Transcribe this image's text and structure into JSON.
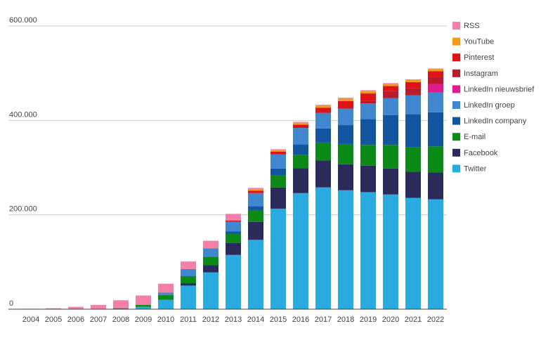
{
  "chart_data": {
    "type": "bar",
    "stacked": true,
    "title": "",
    "xlabel": "",
    "ylabel": "",
    "ylim": [
      0,
      600000
    ],
    "yticks": [
      0,
      200000,
      400000,
      600000
    ],
    "ytick_labels": [
      "0",
      "200.000",
      "400.000",
      "600.000"
    ],
    "grid": true,
    "legend_position": "right",
    "categories": [
      "2004",
      "2005",
      "2006",
      "2007",
      "2008",
      "2009",
      "2010",
      "2011",
      "2012",
      "2013",
      "2014",
      "2015",
      "2016",
      "2017",
      "2018",
      "2019",
      "2020",
      "2021",
      "2022"
    ],
    "series": [
      {
        "name": "Twitter",
        "color": "#29ABE2",
        "values": [
          0,
          0,
          0,
          0,
          0,
          5000,
          20000,
          50000,
          78000,
          115000,
          147000,
          213000,
          246000,
          258000,
          252000,
          248000,
          243000,
          236000,
          233000
        ]
      },
      {
        "name": "Facebook",
        "color": "#2A2A5C",
        "values": [
          0,
          0,
          0,
          0,
          0,
          0,
          0,
          5000,
          15000,
          25000,
          38000,
          45000,
          53000,
          57000,
          55000,
          56000,
          55000,
          55000,
          57000
        ]
      },
      {
        "name": "E-mail",
        "color": "#0B8A17",
        "values": [
          0,
          0,
          0,
          0,
          2000,
          4000,
          10000,
          15000,
          18000,
          20000,
          25000,
          25000,
          28000,
          38000,
          43000,
          44000,
          50000,
          52000,
          55000
        ]
      },
      {
        "name": "LinkedIn company",
        "color": "#1355A0",
        "values": [
          0,
          0,
          0,
          0,
          0,
          0,
          0,
          0,
          0,
          5000,
          8000,
          15000,
          22000,
          30000,
          40000,
          55000,
          63000,
          70000,
          72000
        ]
      },
      {
        "name": "LinkedIn groep",
        "color": "#3F88CF",
        "values": [
          0,
          0,
          0,
          0,
          0,
          0,
          5000,
          15000,
          18000,
          20000,
          28000,
          30000,
          35000,
          33000,
          35000,
          33000,
          36000,
          40000,
          42000
        ]
      },
      {
        "name": "LinkedIn nieuwsbrief",
        "color": "#E0198F",
        "values": [
          0,
          0,
          0,
          0,
          0,
          0,
          0,
          0,
          0,
          0,
          0,
          0,
          0,
          0,
          0,
          0,
          0,
          0,
          18000
        ]
      },
      {
        "name": "Instagram",
        "color": "#B81C2A",
        "values": [
          0,
          0,
          0,
          0,
          0,
          0,
          0,
          0,
          0,
          0,
          0,
          0,
          0,
          0,
          0,
          5000,
          15000,
          15000,
          15000
        ]
      },
      {
        "name": "Pinterest",
        "color": "#DD1316",
        "values": [
          0,
          0,
          0,
          0,
          0,
          0,
          0,
          0,
          0,
          3000,
          5000,
          6000,
          7000,
          11000,
          16000,
          16000,
          11000,
          13000,
          12000
        ]
      },
      {
        "name": "YouTube",
        "color": "#F39A1E",
        "values": [
          0,
          0,
          0,
          0,
          0,
          0,
          0,
          0,
          0,
          0,
          3000,
          3000,
          4000,
          4000,
          5000,
          5000,
          5000,
          5000,
          5000
        ]
      },
      {
        "name": "RSS",
        "color": "#F57FA8",
        "values": [
          1000,
          2000,
          5000,
          9000,
          17000,
          20000,
          19000,
          16000,
          16000,
          14000,
          3000,
          2000,
          2000,
          2000,
          2000,
          2000,
          1000,
          1000,
          1000
        ]
      }
    ]
  }
}
